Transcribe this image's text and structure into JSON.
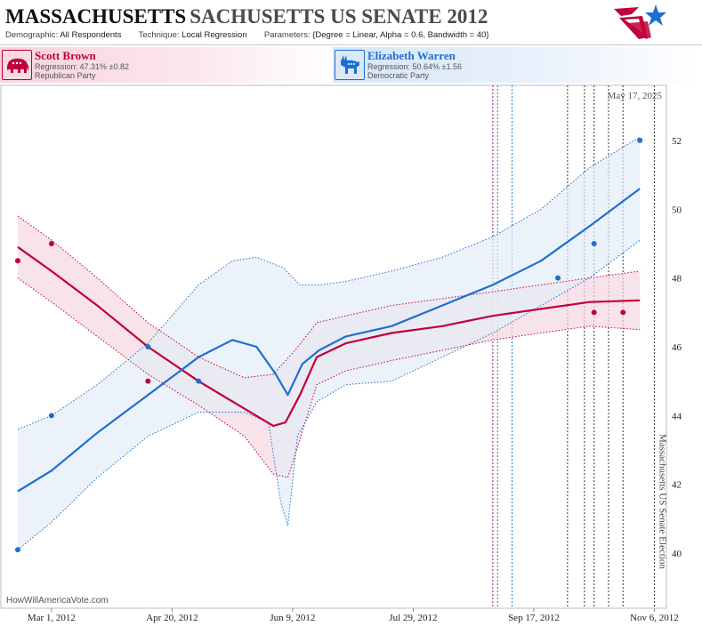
{
  "header": {
    "title_main": "MASSACHUSETTS",
    "title_sub": "SACHUSETTS US SENATE 2012",
    "meta": {
      "demographic_label": "Demographic:",
      "demographic_value": "All Respondents",
      "technique_label": "Technique:",
      "technique_value": "Local Regression",
      "parameters_label": "Parameters:",
      "parameters_value": "{Degree = Linear, Alpha = 0.6, Bandwidth = 40}"
    }
  },
  "candidates": [
    {
      "name": "Scott Brown",
      "regression": "Regression: 47.31% ±0.82",
      "party": "Republican Party",
      "color": "#c0003a",
      "icon": "elephant-icon"
    },
    {
      "name": "Elizabeth Warren",
      "regression": "Regression: 50.64% ±1.56",
      "party": "Democratic Party",
      "color": "#1d6fd1",
      "icon": "donkey-icon"
    }
  ],
  "chart_data": {
    "type": "line",
    "date_label": "May 17, 2025",
    "election_label": "Massachusetts US Senate Election",
    "watermark": "HowWillAmericaVote.com",
    "x_domain": [
      "2012-02-09",
      "2012-11-11"
    ],
    "ylim": [
      38.4,
      53.6
    ],
    "y_ticks": [
      40,
      42,
      44,
      46,
      48,
      50,
      52
    ],
    "x_ticks": [
      {
        "date": "2012-03-01",
        "label": "Mar 1, 2012"
      },
      {
        "date": "2012-04-20",
        "label": "Apr 20, 2012"
      },
      {
        "date": "2012-06-09",
        "label": "Jun 9, 2012"
      },
      {
        "date": "2012-07-29",
        "label": "Jul 29, 2012"
      },
      {
        "date": "2012-09-17",
        "label": "Sep 17, 2012"
      },
      {
        "date": "2012-11-06",
        "label": "Nov 6, 2012"
      }
    ],
    "poll_dates": [
      {
        "date": "2012-08-31",
        "color": "#8a1f7a"
      },
      {
        "date": "2012-09-02",
        "color": "#1d6fd1"
      },
      {
        "date": "2012-09-08",
        "color": "#1d6fd1"
      },
      {
        "date": "2012-10-01",
        "color": "#333333"
      },
      {
        "date": "2012-10-08",
        "color": "#333333"
      },
      {
        "date": "2012-10-12",
        "color": "#333333"
      },
      {
        "date": "2012-10-18",
        "color": "#333333"
      },
      {
        "date": "2012-10-24",
        "color": "#333333"
      },
      {
        "date": "2012-11-06",
        "color": "#333333"
      }
    ],
    "series": [
      {
        "name": "Scott Brown",
        "color": "#c0003a",
        "band_fill": "#f3d7df",
        "line": [
          {
            "date": "2012-02-16",
            "y": 48.9
          },
          {
            "date": "2012-03-01",
            "y": 48.2
          },
          {
            "date": "2012-03-20",
            "y": 47.2
          },
          {
            "date": "2012-04-10",
            "y": 46.0
          },
          {
            "date": "2012-05-01",
            "y": 45.0
          },
          {
            "date": "2012-05-20",
            "y": 44.2
          },
          {
            "date": "2012-06-01",
            "y": 43.7
          },
          {
            "date": "2012-06-06",
            "y": 43.8
          },
          {
            "date": "2012-06-12",
            "y": 44.6
          },
          {
            "date": "2012-06-19",
            "y": 45.7
          },
          {
            "date": "2012-07-01",
            "y": 46.1
          },
          {
            "date": "2012-07-20",
            "y": 46.4
          },
          {
            "date": "2012-08-10",
            "y": 46.6
          },
          {
            "date": "2012-08-31",
            "y": 46.9
          },
          {
            "date": "2012-09-20",
            "y": 47.1
          },
          {
            "date": "2012-10-10",
            "y": 47.3
          },
          {
            "date": "2012-10-31",
            "y": 47.35
          }
        ],
        "upper": [
          {
            "date": "2012-02-16",
            "y": 49.8
          },
          {
            "date": "2012-03-01",
            "y": 49.1
          },
          {
            "date": "2012-03-20",
            "y": 48.0
          },
          {
            "date": "2012-04-10",
            "y": 46.7
          },
          {
            "date": "2012-05-01",
            "y": 45.7
          },
          {
            "date": "2012-05-20",
            "y": 45.1
          },
          {
            "date": "2012-06-01",
            "y": 45.2
          },
          {
            "date": "2012-06-10",
            "y": 45.9
          },
          {
            "date": "2012-06-19",
            "y": 46.7
          },
          {
            "date": "2012-07-01",
            "y": 46.9
          },
          {
            "date": "2012-07-20",
            "y": 47.2
          },
          {
            "date": "2012-08-10",
            "y": 47.4
          },
          {
            "date": "2012-08-31",
            "y": 47.6
          },
          {
            "date": "2012-09-20",
            "y": 47.8
          },
          {
            "date": "2012-10-10",
            "y": 48.0
          },
          {
            "date": "2012-10-31",
            "y": 48.2
          }
        ],
        "lower": [
          {
            "date": "2012-02-16",
            "y": 48.0
          },
          {
            "date": "2012-03-01",
            "y": 47.3
          },
          {
            "date": "2012-03-20",
            "y": 46.3
          },
          {
            "date": "2012-04-10",
            "y": 45.2
          },
          {
            "date": "2012-05-01",
            "y": 44.3
          },
          {
            "date": "2012-05-20",
            "y": 43.4
          },
          {
            "date": "2012-06-01",
            "y": 42.3
          },
          {
            "date": "2012-06-07",
            "y": 42.2
          },
          {
            "date": "2012-06-12",
            "y": 43.3
          },
          {
            "date": "2012-06-19",
            "y": 44.9
          },
          {
            "date": "2012-07-01",
            "y": 45.3
          },
          {
            "date": "2012-07-20",
            "y": 45.6
          },
          {
            "date": "2012-08-10",
            "y": 45.9
          },
          {
            "date": "2012-08-31",
            "y": 46.2
          },
          {
            "date": "2012-09-20",
            "y": 46.4
          },
          {
            "date": "2012-10-10",
            "y": 46.6
          },
          {
            "date": "2012-10-31",
            "y": 46.5
          }
        ],
        "points": [
          {
            "date": "2012-02-16",
            "y": 48.5
          },
          {
            "date": "2012-03-01",
            "y": 49.0
          },
          {
            "date": "2012-04-10",
            "y": 45.0
          },
          {
            "date": "2012-10-12",
            "y": 47.0
          },
          {
            "date": "2012-10-24",
            "y": 47.0
          }
        ]
      },
      {
        "name": "Elizabeth Warren",
        "color": "#1d6fd1",
        "band_fill": "#e4ecf7",
        "line": [
          {
            "date": "2012-02-16",
            "y": 41.8
          },
          {
            "date": "2012-03-01",
            "y": 42.4
          },
          {
            "date": "2012-03-20",
            "y": 43.5
          },
          {
            "date": "2012-04-10",
            "y": 44.6
          },
          {
            "date": "2012-05-01",
            "y": 45.7
          },
          {
            "date": "2012-05-15",
            "y": 46.2
          },
          {
            "date": "2012-05-25",
            "y": 46.0
          },
          {
            "date": "2012-06-02",
            "y": 45.2
          },
          {
            "date": "2012-06-07",
            "y": 44.6
          },
          {
            "date": "2012-06-13",
            "y": 45.5
          },
          {
            "date": "2012-06-20",
            "y": 45.9
          },
          {
            "date": "2012-07-01",
            "y": 46.3
          },
          {
            "date": "2012-07-20",
            "y": 46.6
          },
          {
            "date": "2012-08-10",
            "y": 47.2
          },
          {
            "date": "2012-08-31",
            "y": 47.8
          },
          {
            "date": "2012-09-20",
            "y": 48.5
          },
          {
            "date": "2012-10-10",
            "y": 49.5
          },
          {
            "date": "2012-10-31",
            "y": 50.6
          }
        ],
        "upper": [
          {
            "date": "2012-02-16",
            "y": 43.6
          },
          {
            "date": "2012-03-01",
            "y": 44.0
          },
          {
            "date": "2012-03-20",
            "y": 44.9
          },
          {
            "date": "2012-04-10",
            "y": 46.1
          },
          {
            "date": "2012-05-01",
            "y": 47.8
          },
          {
            "date": "2012-05-15",
            "y": 48.5
          },
          {
            "date": "2012-05-25",
            "y": 48.6
          },
          {
            "date": "2012-06-05",
            "y": 48.3
          },
          {
            "date": "2012-06-12",
            "y": 47.8
          },
          {
            "date": "2012-06-20",
            "y": 47.8
          },
          {
            "date": "2012-07-01",
            "y": 47.9
          },
          {
            "date": "2012-07-20",
            "y": 48.2
          },
          {
            "date": "2012-08-10",
            "y": 48.6
          },
          {
            "date": "2012-08-31",
            "y": 49.2
          },
          {
            "date": "2012-09-20",
            "y": 50.0
          },
          {
            "date": "2012-10-10",
            "y": 51.2
          },
          {
            "date": "2012-10-31",
            "y": 52.1
          }
        ],
        "lower": [
          {
            "date": "2012-02-16",
            "y": 40.1
          },
          {
            "date": "2012-03-01",
            "y": 40.9
          },
          {
            "date": "2012-03-20",
            "y": 42.2
          },
          {
            "date": "2012-04-10",
            "y": 43.4
          },
          {
            "date": "2012-05-01",
            "y": 44.1
          },
          {
            "date": "2012-05-20",
            "y": 44.1
          },
          {
            "date": "2012-05-30",
            "y": 43.8
          },
          {
            "date": "2012-06-04",
            "y": 41.5
          },
          {
            "date": "2012-06-07",
            "y": 40.8
          },
          {
            "date": "2012-06-11",
            "y": 43.4
          },
          {
            "date": "2012-06-19",
            "y": 44.4
          },
          {
            "date": "2012-07-01",
            "y": 44.9
          },
          {
            "date": "2012-07-20",
            "y": 45.0
          },
          {
            "date": "2012-08-10",
            "y": 45.7
          },
          {
            "date": "2012-08-31",
            "y": 46.4
          },
          {
            "date": "2012-09-20",
            "y": 47.2
          },
          {
            "date": "2012-10-10",
            "y": 48.0
          },
          {
            "date": "2012-10-31",
            "y": 49.1
          }
        ],
        "points": [
          {
            "date": "2012-02-16",
            "y": 40.1
          },
          {
            "date": "2012-03-01",
            "y": 44.0
          },
          {
            "date": "2012-04-10",
            "y": 46.0
          },
          {
            "date": "2012-05-01",
            "y": 45.0
          },
          {
            "date": "2012-09-27",
            "y": 48.0
          },
          {
            "date": "2012-10-12",
            "y": 49.0
          },
          {
            "date": "2012-10-31",
            "y": 52.0
          }
        ]
      }
    ]
  }
}
